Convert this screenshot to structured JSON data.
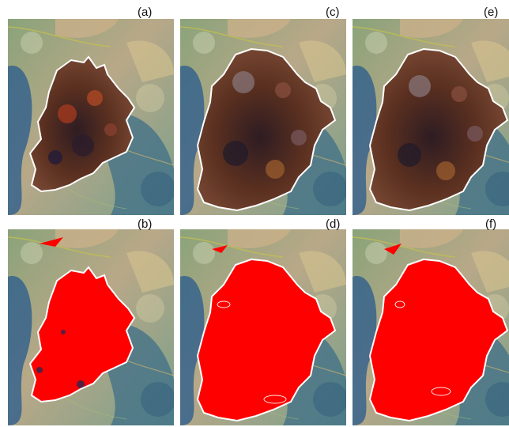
{
  "figure": {
    "panels": [
      {
        "id": "a",
        "label": "(a)",
        "kind": "satellite-burn-scar"
      },
      {
        "id": "c",
        "label": "(c)",
        "kind": "satellite-burn-scar"
      },
      {
        "id": "e",
        "label": "(e)",
        "kind": "satellite-burn-scar"
      },
      {
        "id": "b",
        "label": "(b)",
        "kind": "classified-burned-area"
      },
      {
        "id": "d",
        "label": "(d)",
        "kind": "classified-burned-area"
      },
      {
        "id": "f",
        "label": "(f)",
        "kind": "classified-burned-area"
      }
    ],
    "colors": {
      "burned_area_fill": "#ff0000",
      "perimeter_line": "#ffffff",
      "background_vegetation": "#4f7f8f",
      "burn_scar_dark": "#4a2a22"
    }
  }
}
